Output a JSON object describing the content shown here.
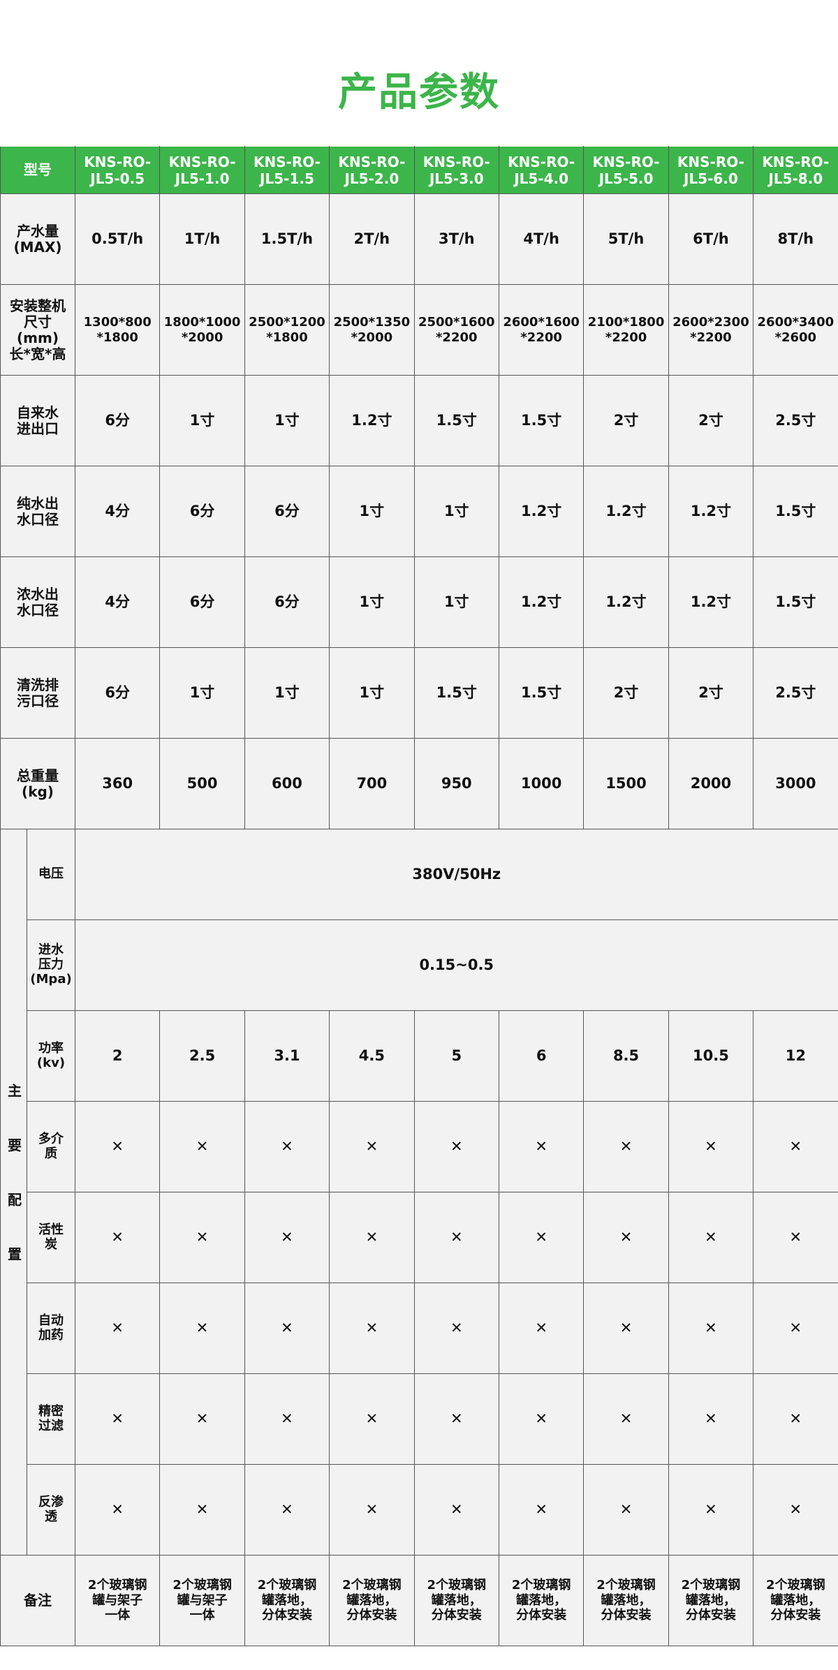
{
  "title": "产品参数",
  "table": {
    "header": {
      "label": "型号",
      "models": [
        "KNS-RO-JL5-0.5",
        "KNS-RO-JL5-1.0",
        "KNS-RO-JL5-1.5",
        "KNS-RO-JL5-2.0",
        "KNS-RO-JL5-3.0",
        "KNS-RO-JL5-4.0",
        "KNS-RO-JL5-5.0",
        "KNS-RO-JL5-6.0",
        "KNS-RO-JL5-8.0"
      ]
    },
    "rows": [
      {
        "label": "产水量\n(MAX)",
        "values": [
          "0.5T/h",
          "1T/h",
          "1.5T/h",
          "2T/h",
          "3T/h",
          "4T/h",
          "5T/h",
          "6T/h",
          "8T/h"
        ]
      },
      {
        "label": "安装整机\n尺寸\n(mm)\n长*宽*高",
        "values": [
          "1300*800\n*1800",
          "1800*1000\n*2000",
          "2500*1200\n*1800",
          "2500*1350\n*2000",
          "2500*1600\n*2200",
          "2600*1600\n*2200",
          "2100*1800\n*2200",
          "2600*2300\n*2200",
          "2600*3400\n*2600"
        ]
      },
      {
        "label": "自来水\n进出口",
        "values": [
          "6分",
          "1寸",
          "1寸",
          "1.2寸",
          "1.5寸",
          "1.5寸",
          "2寸",
          "2寸",
          "2.5寸"
        ]
      },
      {
        "label": "纯水出\n水口径",
        "values": [
          "4分",
          "6分",
          "6分",
          "1寸",
          "1寸",
          "1.2寸",
          "1.2寸",
          "1.2寸",
          "1.5寸"
        ]
      },
      {
        "label": "浓水出\n水口径",
        "values": [
          "4分",
          "6分",
          "6分",
          "1寸",
          "1寸",
          "1.2寸",
          "1.2寸",
          "1.2寸",
          "1.5寸"
        ]
      },
      {
        "label": "清洗排\n污口径",
        "values": [
          "6分",
          "1寸",
          "1寸",
          "1寸",
          "1.5寸",
          "1.5寸",
          "2寸",
          "2寸",
          "2.5寸"
        ]
      },
      {
        "label": "总重量\n(kg)",
        "values": [
          "360",
          "500",
          "600",
          "700",
          "950",
          "1000",
          "1500",
          "2000",
          "3000"
        ]
      }
    ],
    "group": {
      "label": "主要配置",
      "rows": [
        {
          "label": "电压",
          "value": "380V/50Hz"
        },
        {
          "label": "进水\n压力\n(Mpa)",
          "value": "0.15~0.5"
        },
        {
          "label": "功率\n(kv)",
          "values": [
            "2",
            "2.5",
            "3.1",
            "4.5",
            "5",
            "6",
            "8.5",
            "10.5",
            "12"
          ]
        },
        {
          "label": "多介\n质",
          "values": [
            "✕",
            "✕",
            "✕",
            "✕",
            "✕",
            "✕",
            "✕",
            "✕",
            "✕"
          ]
        },
        {
          "label": "活性\n炭",
          "values": [
            "✕",
            "✕",
            "✕",
            "✕",
            "✕",
            "✕",
            "✕",
            "✕",
            "✕"
          ]
        },
        {
          "label": "自动\n加药",
          "values": [
            "✕",
            "✕",
            "✕",
            "✕",
            "✕",
            "✕",
            "✕",
            "✕",
            "✕"
          ]
        },
        {
          "label": "精密\n过滤",
          "values": [
            "✕",
            "✕",
            "✕",
            "✕",
            "✕",
            "✕",
            "✕",
            "✕",
            "✕"
          ]
        },
        {
          "label": "反渗\n透",
          "values": [
            "✕",
            "✕",
            "✕",
            "✕",
            "✕",
            "✕",
            "✕",
            "✕",
            "✕"
          ]
        }
      ]
    },
    "note": {
      "label": "备注",
      "values": [
        "2个玻璃钢\n罐与架子\n一体",
        "2个玻璃钢\n罐与架子\n一体",
        "2个玻璃钢\n罐落地，\n分体安装",
        "2个玻璃钢\n罐落地，\n分体安装",
        "2个玻璃钢\n罐落地，\n分体安装",
        "2个玻璃钢\n罐落地，\n分体安装",
        "2个玻璃钢\n罐落地，\n分体安装",
        "2个玻璃钢\n罐落地，\n分体安装",
        "2个玻璃钢\n罐落地，\n分体安装"
      ]
    }
  }
}
